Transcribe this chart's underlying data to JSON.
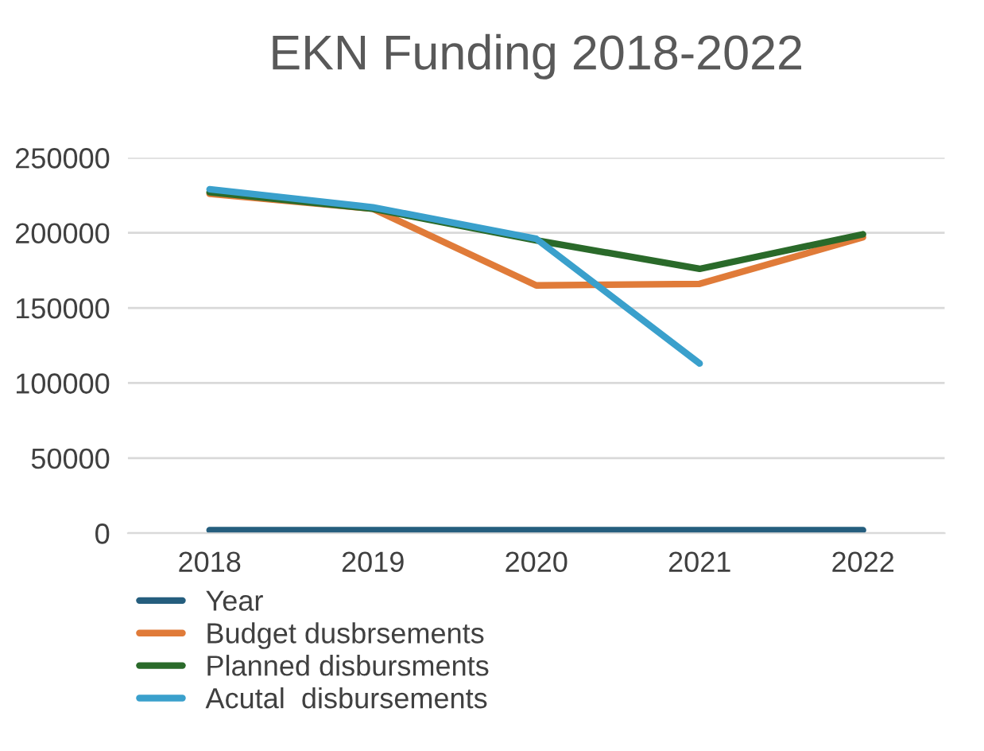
{
  "chart_data": {
    "type": "line",
    "title": "EKN Funding 2018-2022",
    "categories": [
      "2018",
      "2019",
      "2020",
      "2021",
      "2022"
    ],
    "series": [
      {
        "name": "Year",
        "color": "#255e7e",
        "values": [
          2018,
          2019,
          2020,
          2021,
          2022
        ]
      },
      {
        "name": "Budget dusbrsements",
        "color": "#e07b39",
        "values": [
          226000,
          216000,
          165000,
          166000,
          197000
        ]
      },
      {
        "name": "Planned disbursments",
        "color": "#2a6a2a",
        "values": [
          227000,
          216000,
          195000,
          176000,
          199000
        ]
      },
      {
        "name": "Acutal  disbursements",
        "color": "#3aa0cc",
        "values": [
          229000,
          217000,
          196000,
          113000,
          null
        ]
      }
    ],
    "ylim": [
      0,
      250000
    ],
    "yticks": [
      0,
      50000,
      100000,
      150000,
      200000,
      250000
    ],
    "grid": "y",
    "legend": "bottom left",
    "marker": "none",
    "line_style": "solid"
  }
}
